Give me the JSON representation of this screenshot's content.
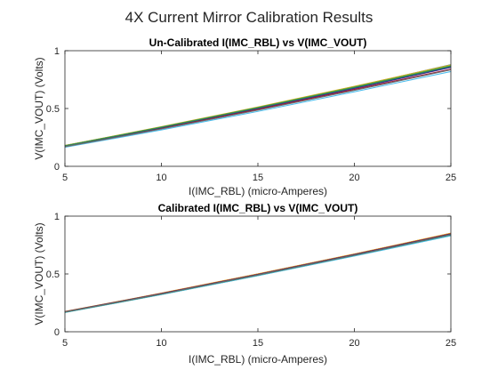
{
  "figure": {
    "title": "4X Current Mirror Calibration Results"
  },
  "chart_data": [
    {
      "type": "line",
      "title": "Un-Calibrated I(IMC_RBL) vs V(IMC_VOUT)",
      "xlabel": "I(IMC_RBL) (micro-Amperes)",
      "ylabel": "V(IMC_VOUT) (Volts)",
      "xlim": [
        5,
        25
      ],
      "ylim": [
        0,
        1
      ],
      "xticks": [
        5,
        10,
        15,
        20,
        25
      ],
      "yticks": [
        0,
        0.5,
        1
      ],
      "xtick_labels": [
        "5",
        "10",
        "15",
        "20",
        "25"
      ],
      "ytick_labels": [
        "0",
        "0.5",
        "1"
      ],
      "grid": false,
      "x": [
        5,
        10,
        15,
        20,
        25
      ],
      "series": [
        {
          "color": "#0072BD",
          "values": [
            0.18,
            0.34,
            0.51,
            0.69,
            0.88
          ]
        },
        {
          "color": "#D95319",
          "values": [
            0.178,
            0.337,
            0.505,
            0.68,
            0.865
          ]
        },
        {
          "color": "#EDB120",
          "values": [
            0.18,
            0.343,
            0.513,
            0.692,
            0.878
          ]
        },
        {
          "color": "#7E2F8E",
          "values": [
            0.175,
            0.332,
            0.498,
            0.672,
            0.855
          ]
        },
        {
          "color": "#77AC30",
          "values": [
            0.179,
            0.341,
            0.51,
            0.688,
            0.872
          ]
        },
        {
          "color": "#4DBEEE",
          "values": [
            0.165,
            0.315,
            0.475,
            0.645,
            0.82
          ]
        },
        {
          "color": "#A2142F",
          "values": [
            0.172,
            0.328,
            0.493,
            0.665,
            0.84
          ]
        },
        {
          "color": "#1F3A93",
          "values": [
            0.176,
            0.335,
            0.502,
            0.676,
            0.858
          ]
        },
        {
          "color": "#2E8B57",
          "values": [
            0.177,
            0.338,
            0.506,
            0.682,
            0.866
          ]
        },
        {
          "color": "#6B6B6B",
          "values": [
            0.17,
            0.323,
            0.486,
            0.657,
            0.835
          ]
        }
      ]
    },
    {
      "type": "line",
      "title": "Calibrated I(IMC_RBL) vs V(IMC_VOUT)",
      "xlabel": "I(IMC_RBL) (micro-Amperes)",
      "ylabel": "V(IMC_VOUT) (Volts)",
      "xlim": [
        5,
        25
      ],
      "ylim": [
        0,
        1
      ],
      "xticks": [
        5,
        10,
        15,
        20,
        25
      ],
      "yticks": [
        0,
        0.5,
        1
      ],
      "xtick_labels": [
        "5",
        "10",
        "15",
        "20",
        "25"
      ],
      "ytick_labels": [
        "0",
        "0.5",
        "1"
      ],
      "grid": false,
      "x": [
        5,
        10,
        15,
        20,
        25
      ],
      "series": [
        {
          "color": "#0072BD",
          "values": [
            0.175,
            0.333,
            0.5,
            0.672,
            0.852
          ]
        },
        {
          "color": "#D95319",
          "values": [
            0.174,
            0.332,
            0.498,
            0.67,
            0.849
          ]
        },
        {
          "color": "#EDB120",
          "values": [
            0.176,
            0.334,
            0.501,
            0.673,
            0.853
          ]
        },
        {
          "color": "#7E2F8E",
          "values": [
            0.173,
            0.33,
            0.496,
            0.668,
            0.846
          ]
        },
        {
          "color": "#77AC30",
          "values": [
            0.168,
            0.322,
            0.486,
            0.657,
            0.832
          ]
        },
        {
          "color": "#4DBEEE",
          "values": [
            0.167,
            0.321,
            0.485,
            0.655,
            0.83
          ]
        },
        {
          "color": "#A2142F",
          "values": [
            0.174,
            0.331,
            0.497,
            0.669,
            0.848
          ]
        },
        {
          "color": "#1F3A93",
          "values": [
            0.172,
            0.329,
            0.494,
            0.666,
            0.844
          ]
        },
        {
          "color": "#2E8B57",
          "values": [
            0.17,
            0.325,
            0.49,
            0.661,
            0.838
          ]
        },
        {
          "color": "#6B6B6B",
          "values": [
            0.171,
            0.327,
            0.492,
            0.663,
            0.841
          ]
        }
      ]
    }
  ]
}
